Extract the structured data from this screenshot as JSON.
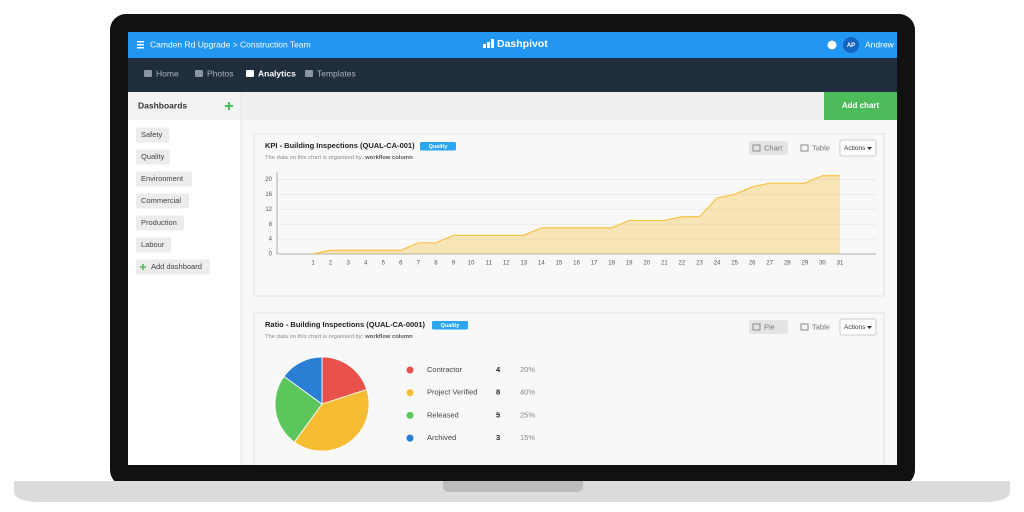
{
  "header": {
    "breadcrumb": "Camden Rd Upgrade > Construction Team",
    "brand": "Dashpivot",
    "avatar": "AP",
    "user": "Andrew"
  },
  "nav": [
    "Home",
    "Photos",
    "Analytics",
    "Templates"
  ],
  "sidebar": {
    "title": "Dashboards",
    "items": [
      "Safety",
      "Quality",
      "Environment",
      "Commercial",
      "Production",
      "Labour"
    ],
    "add": "Add dashboard"
  },
  "toolbar": {
    "add_chart": "Add chart"
  },
  "chart_data": [
    {
      "type": "area",
      "title": "KPI - Building Inspections (QUAL-CA-001)",
      "badge": "Quality",
      "note": "The data on this chart is organised by:",
      "note_field": "workflow column",
      "views": [
        "Chart",
        "Table"
      ],
      "actions": "Actions",
      "categories": [
        "1",
        "2",
        "3",
        "4",
        "5",
        "6",
        "7",
        "8",
        "9",
        "10",
        "11",
        "12",
        "13",
        "14",
        "15",
        "16",
        "17",
        "18",
        "19",
        "20",
        "21",
        "22",
        "23",
        "24",
        "25",
        "26",
        "27",
        "28",
        "29",
        "30",
        "31"
      ],
      "values": [
        0,
        1,
        1,
        1,
        1,
        1,
        3,
        3,
        5,
        5,
        5,
        5,
        5,
        7,
        7,
        7,
        7,
        7,
        9,
        9,
        9,
        10,
        10,
        15,
        16,
        18,
        19,
        19,
        19,
        21,
        21
      ],
      "color": "#f6c343",
      "ylim": [
        0,
        22
      ],
      "yticks": [
        0,
        4,
        8,
        12,
        16,
        20
      ],
      "grid": true
    },
    {
      "type": "pie",
      "title": "Ratio - Building Inspections (QUAL-CA-0001)",
      "badge": "Quality",
      "note": "The data on this chart is organised by:",
      "note_field": "workflow column",
      "views": [
        "Pie",
        "Table"
      ],
      "actions": "Actions",
      "categories": [
        "Contractor",
        "Project Verified",
        "Released",
        "Archived"
      ],
      "values": [
        4,
        8,
        5,
        3
      ],
      "percent_labels": [
        "20%",
        "40%",
        "25%",
        "15%"
      ],
      "colors": [
        "#e8524a",
        "#f6bd33",
        "#5cc65c",
        "#2a7fd4"
      ]
    }
  ]
}
